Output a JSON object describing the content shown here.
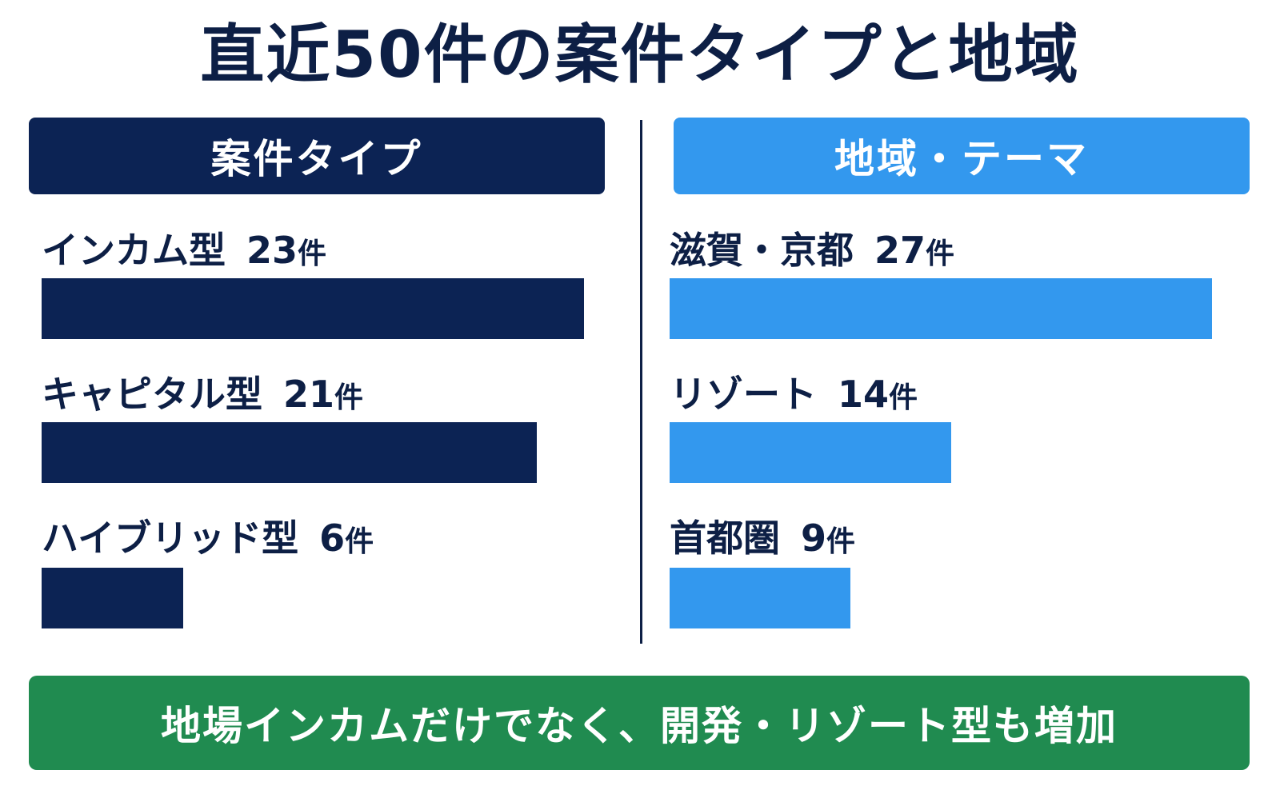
{
  "title": "直近50件の案件タイプと地域",
  "colors": {
    "navy": "#0c2354",
    "blue": "#3398ee",
    "green": "#208b50",
    "text": "#0d1f45"
  },
  "chart_data": [
    {
      "type": "bar",
      "title": "案件タイプ",
      "unit": "件",
      "categories": [
        "インカム型",
        "キャピタル型",
        "ハイブリッド型"
      ],
      "values": [
        23,
        21,
        6
      ]
    },
    {
      "type": "bar",
      "title": "地域・テーマ",
      "unit": "件",
      "categories": [
        "滋賀・京都",
        "リゾート",
        "首都圏"
      ],
      "values": [
        27,
        14,
        9
      ]
    }
  ],
  "footer": "地場インカムだけでなく、開発・リゾート型も増加"
}
